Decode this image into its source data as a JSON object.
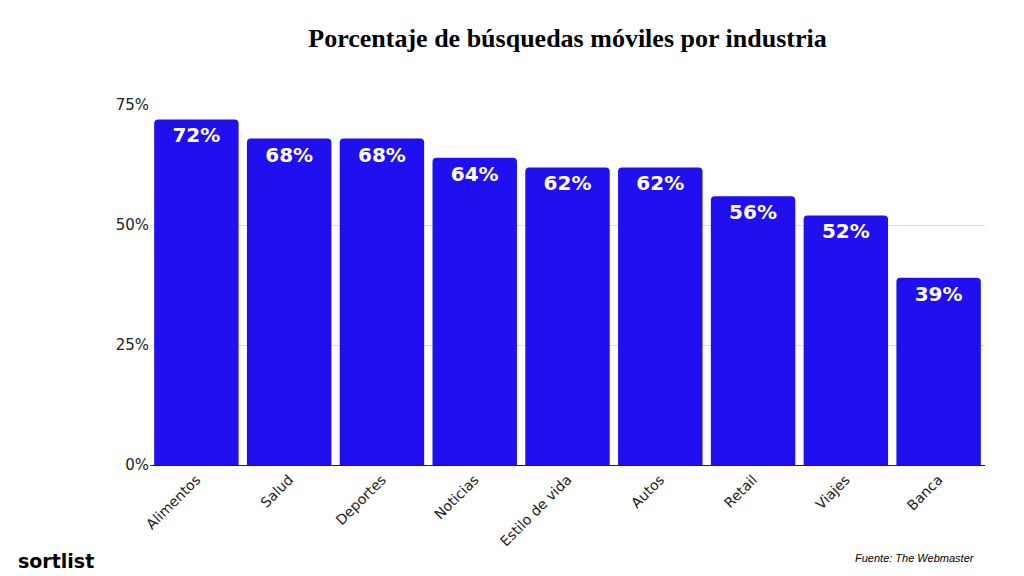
{
  "chart_data": {
    "type": "bar",
    "title": "Porcentaje de búsquedas móviles por industria",
    "categories": [
      "Alimentos",
      "Salud",
      "Deportes",
      "Noticias",
      "Estilo de vida",
      "Autos",
      "Retail",
      "Viajes",
      "Banca"
    ],
    "values": [
      72,
      68,
      68,
      64,
      62,
      62,
      56,
      52,
      39
    ],
    "value_labels": [
      "72%",
      "68%",
      "68%",
      "64%",
      "62%",
      "62%",
      "56%",
      "52%",
      "39%"
    ],
    "color": "#2010f0",
    "ylim": [
      0,
      75
    ],
    "yticks": [
      {
        "value": 0,
        "label": "0%"
      },
      {
        "value": 25,
        "label": "25%"
      },
      {
        "value": 50,
        "label": "50%"
      },
      {
        "value": 75,
        "label": "75%"
      }
    ],
    "grid": true,
    "data_labels": true,
    "annotations": [
      "sortlist",
      "Fuente: The Webmaster"
    ]
  }
}
